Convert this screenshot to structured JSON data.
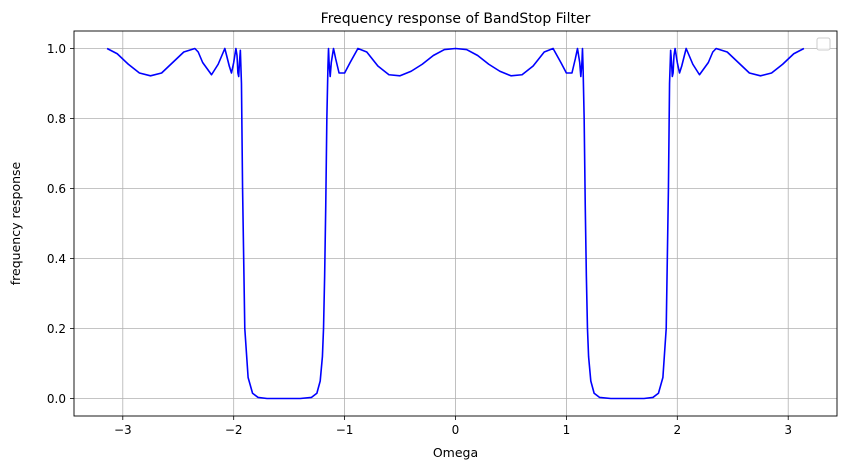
{
  "chart_data": {
    "type": "line",
    "title": "Frequency response of BandStop Filter",
    "xlabel": "Omega",
    "ylabel": "frequency response",
    "xlim": [
      -3.44,
      3.44
    ],
    "ylim": [
      -0.05,
      1.05
    ],
    "xticks": [
      -3,
      -2,
      -1,
      0,
      1,
      2,
      3
    ],
    "xtick_labels": [
      "−3",
      "−2",
      "−1",
      "0",
      "1",
      "2",
      "3"
    ],
    "yticks": [
      0.0,
      0.2,
      0.4,
      0.6,
      0.8,
      1.0
    ],
    "ytick_labels": [
      "0.0",
      "0.2",
      "0.4",
      "0.6",
      "0.8",
      "1.0"
    ],
    "grid": true,
    "legend": "top-right (empty)",
    "series": [
      {
        "color": "#0000ff",
        "x": [
          -3.1416,
          -3.05,
          -2.95,
          -2.85,
          -2.75,
          -2.65,
          -2.55,
          -2.45,
          -2.35,
          -2.32,
          -2.28,
          -2.2,
          -2.14,
          -2.08,
          -2.04,
          -2.02,
          -2.0,
          -1.98,
          -1.97,
          -1.962,
          -1.955,
          -1.948,
          -1.94,
          -1.93,
          -1.92,
          -1.9,
          -1.87,
          -1.83,
          -1.78,
          -1.7,
          -1.6,
          -1.5,
          -1.4,
          -1.3,
          -1.25,
          -1.22,
          -1.2,
          -1.19,
          -1.18,
          -1.17,
          -1.16,
          -1.15,
          -1.145,
          -1.14,
          -1.13,
          -1.12,
          -1.1,
          -1.08,
          -1.05,
          -1.0,
          -0.95,
          -0.88,
          -0.8,
          -0.7,
          -0.6,
          -0.5,
          -0.4,
          -0.3,
          -0.2,
          -0.1,
          0.0,
          0.1,
          0.2,
          0.3,
          0.4,
          0.5,
          0.6,
          0.7,
          0.8,
          0.88,
          0.95,
          1.0,
          1.05,
          1.08,
          1.1,
          1.12,
          1.13,
          1.14,
          1.145,
          1.15,
          1.16,
          1.17,
          1.18,
          1.19,
          1.2,
          1.22,
          1.25,
          1.3,
          1.4,
          1.5,
          1.6,
          1.7,
          1.78,
          1.83,
          1.87,
          1.9,
          1.92,
          1.93,
          1.94,
          1.948,
          1.955,
          1.962,
          1.97,
          1.98,
          2.0,
          2.02,
          2.04,
          2.08,
          2.14,
          2.2,
          2.28,
          2.32,
          2.35,
          2.45,
          2.55,
          2.65,
          2.75,
          2.85,
          2.95,
          3.05,
          3.1416
        ],
        "y": [
          1.0,
          0.985,
          0.955,
          0.93,
          0.922,
          0.93,
          0.96,
          0.99,
          1.0,
          0.99,
          0.96,
          0.925,
          0.955,
          1.0,
          0.95,
          0.93,
          0.96,
          1.0,
          0.98,
          0.93,
          0.92,
          0.96,
          0.995,
          0.9,
          0.6,
          0.2,
          0.06,
          0.015,
          0.003,
          0.0,
          0.0,
          0.0,
          0.0,
          0.003,
          0.015,
          0.05,
          0.12,
          0.2,
          0.35,
          0.55,
          0.8,
          0.95,
          1.0,
          0.96,
          0.92,
          0.96,
          1.0,
          0.97,
          0.93,
          0.93,
          0.96,
          1.0,
          0.99,
          0.95,
          0.925,
          0.922,
          0.935,
          0.955,
          0.98,
          0.997,
          1.0,
          0.997,
          0.98,
          0.955,
          0.935,
          0.922,
          0.925,
          0.95,
          0.99,
          1.0,
          0.96,
          0.93,
          0.93,
          0.97,
          1.0,
          0.96,
          0.92,
          0.96,
          1.0,
          0.95,
          0.8,
          0.55,
          0.35,
          0.2,
          0.12,
          0.05,
          0.015,
          0.003,
          0.0,
          0.0,
          0.0,
          0.0,
          0.003,
          0.015,
          0.06,
          0.2,
          0.6,
          0.9,
          0.995,
          0.96,
          0.92,
          0.93,
          0.98,
          1.0,
          0.96,
          0.93,
          0.95,
          1.0,
          0.955,
          0.925,
          0.96,
          0.99,
          1.0,
          0.99,
          0.96,
          0.93,
          0.922,
          0.93,
          0.955,
          0.985,
          1.0
        ]
      }
    ]
  }
}
